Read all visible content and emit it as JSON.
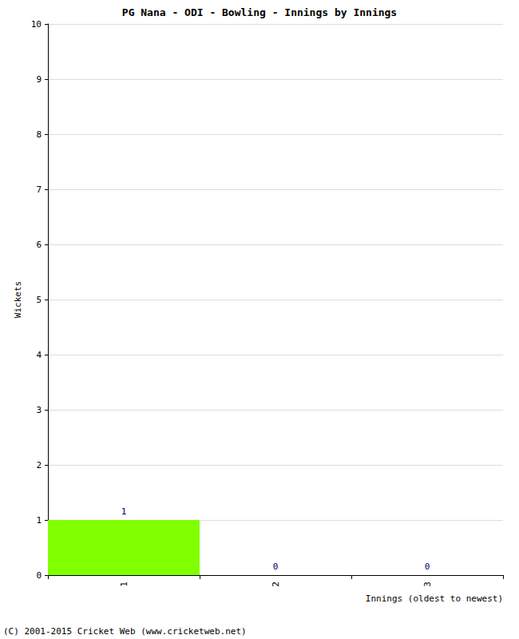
{
  "chart_data": {
    "type": "bar",
    "title": "PG Nana - ODI - Bowling - Innings by Innings",
    "x_label": "Innings (oldest to newest)",
    "y_label": "Wickets",
    "categories": [
      "1",
      "2",
      "3"
    ],
    "values": [
      1,
      0,
      0
    ],
    "color": "#80ff00",
    "ylim": [
      0,
      10
    ],
    "yticks": [
      0,
      1,
      2,
      3,
      4,
      5,
      6,
      7,
      8,
      9,
      10
    ],
    "grid": true,
    "data_labels": true,
    "annotation": "(C) 2001-2015 Cricket Web (www.cricketweb.net)"
  }
}
